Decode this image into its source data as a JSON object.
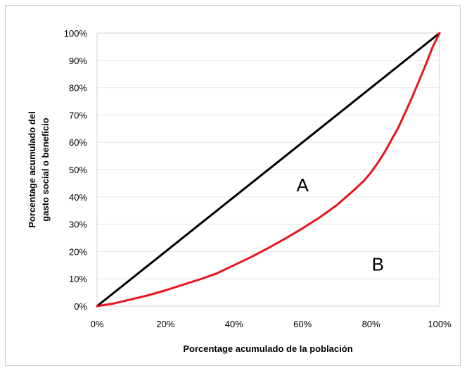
{
  "chart_data": {
    "type": "line",
    "title": "",
    "xlabel": "Porcentage acumulado de la población",
    "ylabel_lines": [
      "Porcentage acumulado del",
      "gasto social o beneficio"
    ],
    "xlim": [
      0,
      100
    ],
    "ylim": [
      0,
      100
    ],
    "x_ticks": [
      "0%",
      "20%",
      "40%",
      "60%",
      "80%",
      "100%"
    ],
    "y_ticks": [
      "0%",
      "10%",
      "20%",
      "30%",
      "40%",
      "50%",
      "60%",
      "70%",
      "80%",
      "90%",
      "100%"
    ],
    "grid": true,
    "series": [
      {
        "color": "#000000",
        "x": [
          0,
          100
        ],
        "y": [
          0,
          100
        ]
      },
      {
        "color": "#e8141c",
        "x": [
          0,
          5,
          10,
          15,
          20,
          25,
          30,
          35,
          40,
          45,
          50,
          55,
          60,
          65,
          70,
          75,
          78,
          80,
          82,
          84,
          86,
          88,
          90,
          92,
          94,
          96,
          98,
          100
        ],
        "y": [
          0,
          1,
          2.5,
          4,
          5.8,
          7.8,
          9.8,
          12,
          15,
          18,
          21.3,
          24.8,
          28.5,
          32.5,
          37,
          42.5,
          46,
          49,
          52.5,
          56.5,
          61,
          65.5,
          71,
          76.5,
          82.5,
          88.5,
          95,
          100
        ]
      }
    ],
    "annotations": [
      {
        "text": "A",
        "x": 60,
        "y": 42
      },
      {
        "text": "B",
        "x": 82,
        "y": 13
      }
    ]
  }
}
